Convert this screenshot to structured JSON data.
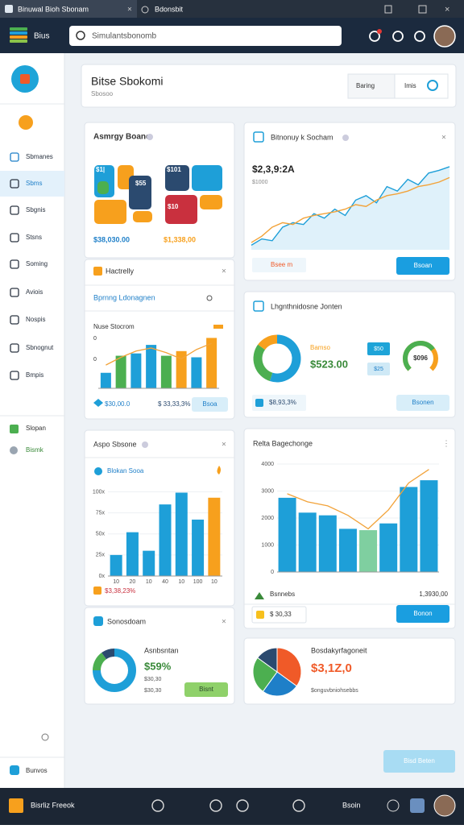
{
  "window": {
    "tabs": [
      "Binuwal Bioh Sbonam",
      "Bdonsbit"
    ]
  },
  "header": {
    "brand": "Bius",
    "search": "Simulantsbonomb"
  },
  "sidebar": {
    "items": [
      "Sbmanes",
      "Sbms",
      "Sbgnis",
      "Stsns",
      "Soming",
      "Aviois",
      "Nospis",
      "Sbnognut",
      "Bmpis"
    ],
    "extra": [
      "Slopan",
      "Bismk"
    ],
    "footer": "Bunvos"
  },
  "page": {
    "title": "Bitse Sbokomi",
    "subtitle": "Sbosoo",
    "dropdown": "Baring",
    "button": "Imis"
  },
  "cards": {
    "summary": {
      "title": "Asmrgy Boane",
      "tiles": [
        "$1|",
        "$101",
        "$55",
        "$10"
      ],
      "totals": [
        "$38,030.00",
        "$1,338,00"
      ]
    },
    "activity": {
      "title": "Hactrelly",
      "subtitle": "Bprnng Ldonagnen",
      "chart_title": "Nuse Stocrom",
      "axis": [
        "0",
        "0"
      ],
      "values": [
        20,
        42,
        45,
        56,
        42,
        48,
        40,
        65
      ],
      "colors": [
        "#1e9fd8",
        "#4caf50",
        "#1e9fd8",
        "#1e9fd8",
        "#4caf50",
        "#f7a01d",
        "#1e9fd8",
        "#f7a01d"
      ],
      "line": [
        30,
        40,
        48,
        52,
        46,
        38,
        50,
        58
      ],
      "ylim": [
        0,
        80
      ],
      "footer": [
        "$30,00.0",
        "$ 33,33,3%"
      ],
      "button": "Bsoa"
    },
    "trend": {
      "title": "Bitnonuy k Socham",
      "value": "$2,3,9:2A",
      "sub": "$1000",
      "ylim": [
        0,
        100
      ],
      "series": [
        {
          "color": "#1e9fd8",
          "values": [
            5,
            12,
            10,
            25,
            30,
            28,
            40,
            35,
            45,
            38,
            55,
            60,
            52,
            70,
            65,
            78,
            72,
            85,
            88,
            92
          ]
        },
        {
          "color": "#f2a33a",
          "values": [
            8,
            15,
            25,
            30,
            28,
            35,
            38,
            40,
            42,
            45,
            50,
            48,
            55,
            60,
            62,
            65,
            70,
            72,
            75,
            80
          ]
        }
      ],
      "badge": "Bsee m",
      "button": "Bsoan"
    },
    "split": {
      "title": "Lhgnthnidosne Jonten",
      "values": [
        55,
        30,
        15
      ],
      "colors": [
        "#1e9fd8",
        "#4caf50",
        "#f7a01d"
      ],
      "label": "Bamso",
      "amount": "$523.00",
      "badges": [
        "$50",
        "$25"
      ],
      "gauge": 70,
      "gauge_label": "$096",
      "badge": "$8,93,3%",
      "button": "Bsonen"
    },
    "sales": {
      "title": "Aspo Sbsone",
      "legend": "Blokan Sooa",
      "categories": [
        "10",
        "20",
        "10",
        "40",
        "10",
        "100",
        "10"
      ],
      "values": [
        25,
        52,
        30,
        85,
        99,
        67,
        93
      ],
      "colors": [
        "#1e9fd8",
        "#1e9fd8",
        "#1e9fd8",
        "#1e9fd8",
        "#1e9fd8",
        "#1e9fd8",
        "#f7a01d"
      ],
      "ylim": [
        0,
        110
      ],
      "yticks": [
        {
          "value": 0,
          "label": "0x"
        },
        {
          "value": 25,
          "label": "25x"
        },
        {
          "value": 50,
          "label": "50x"
        },
        {
          "value": 75,
          "label": "75x"
        },
        {
          "value": 100,
          "label": "100x"
        }
      ],
      "footer": "$3,38,23%"
    },
    "share": {
      "title": "Sonosdoam",
      "values": [
        75,
        15,
        10
      ],
      "colors": [
        "#1e9fd8",
        "#4caf50",
        "#2b4a6f"
      ],
      "label": "Asnbsntan",
      "percent": "$59%",
      "notes": [
        "$30,30",
        "$30,30"
      ],
      "button": "Bisnt"
    },
    "change": {
      "title": "Relta Bagechonge",
      "values": [
        2750,
        2200,
        2100,
        1600,
        1550,
        1800,
        3150,
        3400
      ],
      "colors": [
        "#1e9fd8",
        "#1e9fd8",
        "#1e9fd8",
        "#1e9fd8",
        "#7fcfa0",
        "#1e9fd8",
        "#1e9fd8",
        "#1e9fd8"
      ],
      "line": [
        2900,
        2600,
        2450,
        2100,
        1600,
        2300,
        3300,
        3800
      ],
      "ylim": [
        0,
        4000
      ],
      "yticks": [
        0,
        1000,
        2000,
        3000,
        4000
      ],
      "legend": "Bsnnebs",
      "total": "1,3930,00",
      "badge": "$ 30,33",
      "button": "Bonon"
    },
    "breakdown": {
      "title": "Bosdakyrfagoneit",
      "amount": "$3,1Z,0",
      "note": "$onguvbniohsebbs",
      "values": [
        35,
        25,
        25,
        15
      ],
      "colors": [
        "#f05a28",
        "#1e7fc8",
        "#4caf50",
        "#2b4a6f"
      ]
    }
  },
  "taskbar": {
    "label": "Bisrliz Freeok",
    "user": "Bsoin"
  },
  "fab": "Bisd Beten"
}
